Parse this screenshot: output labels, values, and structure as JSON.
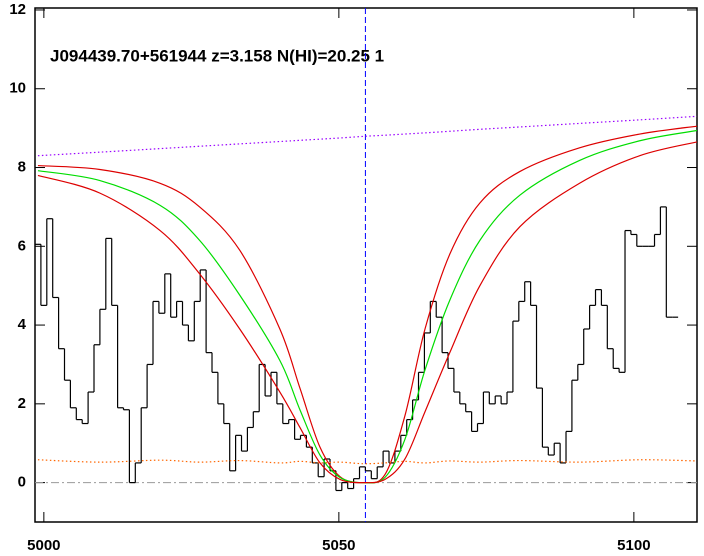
{
  "chart_data": {
    "type": "spectrum",
    "annotation": "J094439.70+561944 z=3.158 N(HI)=20.25 1",
    "xlim": [
      4998.5,
      5110.7
    ],
    "ylim": [
      -1,
      12.05
    ],
    "xticks": [
      5000,
      5050,
      5100
    ],
    "yticks": [
      0,
      2,
      4,
      6,
      8,
      10,
      12
    ],
    "vline": 5054.5,
    "vline_color": "#0000ff",
    "hline": 0,
    "hline_color": "#999999",
    "x": [
      4999,
      5009.5,
      5019.7,
      5026.4,
      5033.2,
      5040,
      5043.4,
      5046.8,
      5050.2,
      5054.1,
      5057.8,
      5061.2,
      5064.6,
      5068.8,
      5073.9,
      5080.7,
      5090.8,
      5101,
      5110.7
    ],
    "series": [
      {
        "name": "flux",
        "style": "steps",
        "color": "#000000",
        "x": [
          4999,
          5000,
          5001,
          5002,
          5003,
          5004,
          5005,
          5006,
          5007,
          5008,
          5009,
          5010,
          5011,
          5012,
          5013,
          5014,
          5015,
          5016,
          5017,
          5018,
          5019,
          5020,
          5021,
          5022,
          5023,
          5024,
          5025,
          5026,
          5027,
          5028,
          5029,
          5030,
          5031,
          5032,
          5033,
          5034,
          5035,
          5036,
          5037,
          5038,
          5039,
          5040,
          5041,
          5042,
          5043,
          5044,
          5045,
          5046,
          5047,
          5048,
          5049,
          5050,
          5051,
          5052,
          5053,
          5054,
          5055,
          5056,
          5057,
          5058,
          5059,
          5060,
          5061,
          5062,
          5063,
          5064,
          5065,
          5066,
          5067,
          5068,
          5069,
          5070,
          5071,
          5072,
          5073,
          5074,
          5075,
          5076,
          5077,
          5078,
          5079,
          5080,
          5081,
          5082,
          5083,
          5084,
          5085,
          5086,
          5087,
          5088,
          5089,
          5090,
          5091,
          5092,
          5093,
          5094,
          5095,
          5096,
          5097,
          5098,
          5099,
          5100,
          5101,
          5102,
          5103,
          5104,
          5105,
          5106,
          5107
        ],
        "values": [
          6.05,
          4.5,
          6.7,
          4.7,
          3.4,
          2.6,
          1.9,
          1.6,
          1.5,
          2.3,
          3.5,
          4.4,
          6.2,
          4.5,
          1.9,
          1.85,
          0,
          0.5,
          1.9,
          3.0,
          4.6,
          4.3,
          5.3,
          4.2,
          4.6,
          4.0,
          3.6,
          4.6,
          5.4,
          3.3,
          2.8,
          2.0,
          1.5,
          0.3,
          1.2,
          0.8,
          1.4,
          1.8,
          3.0,
          2.2,
          2.8,
          2.0,
          1.5,
          1.6,
          1.1,
          1.2,
          0.9,
          0.5,
          0.15,
          0.6,
          0.3,
          -0.2,
          0.0,
          -0.15,
          0.1,
          0.4,
          0.3,
          0.1,
          0.4,
          0.8,
          0.5,
          0.8,
          1.2,
          1.6,
          2.1,
          2.8,
          3.8,
          4.6,
          4.2,
          3.3,
          2.9,
          2.3,
          2.0,
          1.8,
          1.3,
          1.5,
          2.3,
          2.0,
          2.2,
          2.0,
          2.3,
          4.1,
          4.6,
          5.1,
          4.5,
          2.4,
          0.9,
          0.7,
          1.0,
          0.5,
          1.3,
          2.6,
          3.0,
          3.9,
          4.5,
          4.9,
          4.5,
          3.4,
          2.9,
          2.8,
          6.4,
          6.3,
          6.0,
          6.0,
          6.0,
          6.3,
          7.0,
          4.2,
          4.2
        ]
      },
      {
        "name": "model-high",
        "style": "curve",
        "color": "#dd0000",
        "values": [
          8.05,
          7.95,
          7.6,
          7.0,
          5.9,
          3.9,
          2.4,
          0.9,
          0.15,
          0,
          0.2,
          1.7,
          3.9,
          5.8,
          7.1,
          7.9,
          8.5,
          8.85,
          9.05
        ]
      },
      {
        "name": "model",
        "style": "curve",
        "color": "#00dd00",
        "values": [
          7.92,
          7.67,
          7.04,
          6.15,
          4.76,
          3.1,
          1.85,
          0.7,
          0.13,
          0,
          0.13,
          1.1,
          2.86,
          4.63,
          6.15,
          7.3,
          8.18,
          8.68,
          8.94
        ]
      },
      {
        "name": "model-low",
        "style": "curve",
        "color": "#dd0000",
        "values": [
          7.8,
          7.35,
          6.4,
          5.3,
          3.9,
          2.3,
          1.4,
          0.5,
          0.08,
          0,
          0.08,
          0.6,
          1.8,
          3.3,
          5.0,
          6.5,
          7.6,
          8.3,
          8.65
        ]
      },
      {
        "name": "continuum",
        "style": "dotted",
        "color": "#9900ff",
        "values": [
          8.3,
          8.39,
          8.48,
          8.54,
          8.6,
          8.66,
          8.69,
          8.72,
          8.75,
          8.79,
          8.82,
          8.85,
          8.88,
          8.92,
          8.97,
          9.03,
          9.12,
          9.21,
          9.3
        ]
      },
      {
        "name": "error",
        "style": "dotted",
        "color": "#ff6600",
        "values": [
          0.58,
          0.52,
          0.57,
          0.52,
          0.56,
          0.5,
          0.54,
          0.5,
          0.52,
          0.48,
          0.5,
          0.54,
          0.5,
          0.55,
          0.52,
          0.56,
          0.52,
          0.58,
          0.55
        ]
      }
    ]
  }
}
